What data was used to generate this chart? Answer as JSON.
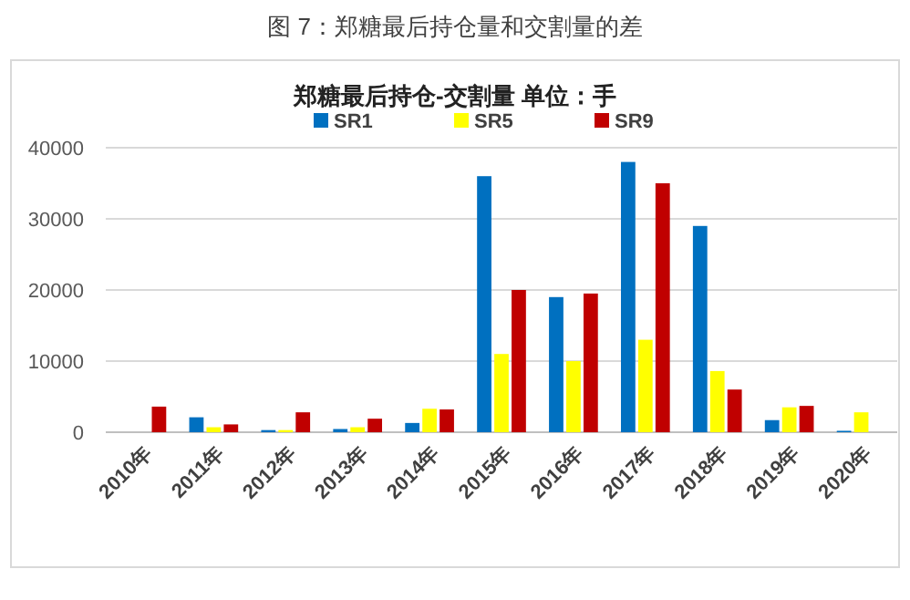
{
  "chart_data": {
    "type": "bar",
    "title": "图 7：郑糖最后持仓量和交割量的差",
    "subtitle": "郑糖最后持仓-交割量 单位：手",
    "categories": [
      "2010年",
      "2011年",
      "2012年",
      "2013年",
      "2014年",
      "2015年",
      "2016年",
      "2017年",
      "2018年",
      "2019年",
      "2020年"
    ],
    "series": [
      {
        "name": "SR1",
        "color": "#0070c0",
        "values": [
          null,
          2100,
          300,
          450,
          1300,
          36000,
          19000,
          38000,
          29000,
          1700,
          200
        ]
      },
      {
        "name": "SR5",
        "color": "#ffff00",
        "values": [
          null,
          700,
          300,
          700,
          3300,
          11000,
          10000,
          13000,
          8600,
          3500,
          2800
        ]
      },
      {
        "name": "SR9",
        "color": "#c00000",
        "values": [
          3600,
          1100,
          2800,
          1900,
          3200,
          20000,
          19500,
          35000,
          6000,
          3700,
          null
        ]
      }
    ],
    "ylim": [
      0,
      40000
    ],
    "yticks": [
      0,
      10000,
      20000,
      30000,
      40000
    ],
    "grid": "y",
    "legend": "top"
  }
}
